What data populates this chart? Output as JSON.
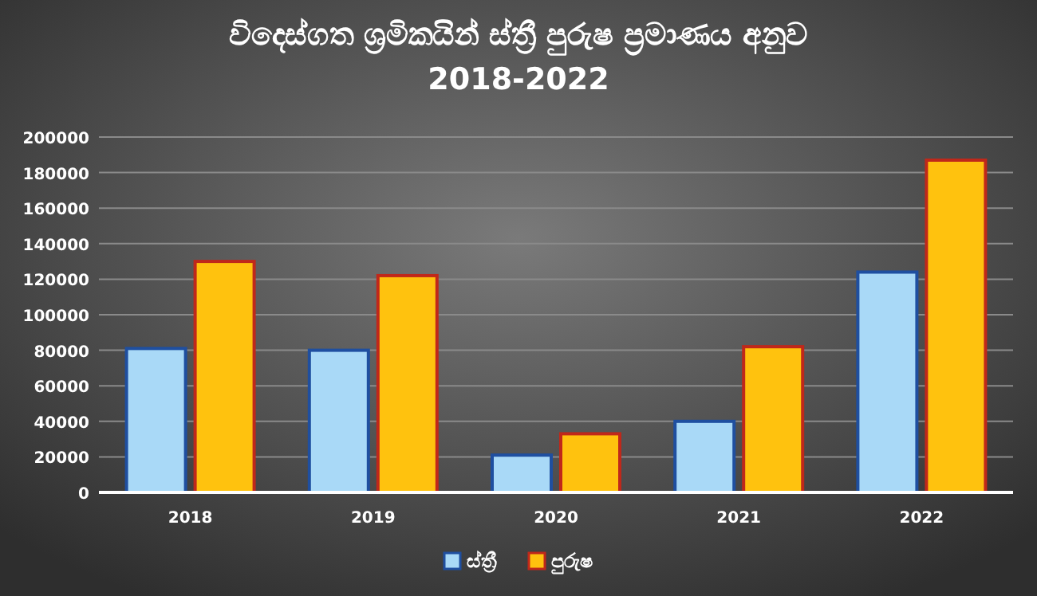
{
  "chart_data": {
    "type": "bar",
    "title": "විදෙස්ගත ශ්‍රමිකයින් ස්ත්‍රී පුරුෂ ප්‍රමාණය අනුව",
    "subtitle": "2018-2022",
    "categories": [
      "2018",
      "2019",
      "2020",
      "2021",
      "2022"
    ],
    "series": [
      {
        "name": "ස්ත්‍රී",
        "color": "#a9d9f7",
        "values": [
          81000,
          80000,
          21000,
          40000,
          124000
        ]
      },
      {
        "name": "පුරුෂ",
        "color": "#ffc20e",
        "values": [
          130000,
          122000,
          33000,
          82000,
          187000
        ]
      }
    ],
    "ylim": [
      0,
      200000
    ],
    "yticks": [
      0,
      20000,
      40000,
      60000,
      80000,
      100000,
      120000,
      140000,
      160000,
      180000,
      200000
    ],
    "grid": "y",
    "legend": "bottom"
  }
}
